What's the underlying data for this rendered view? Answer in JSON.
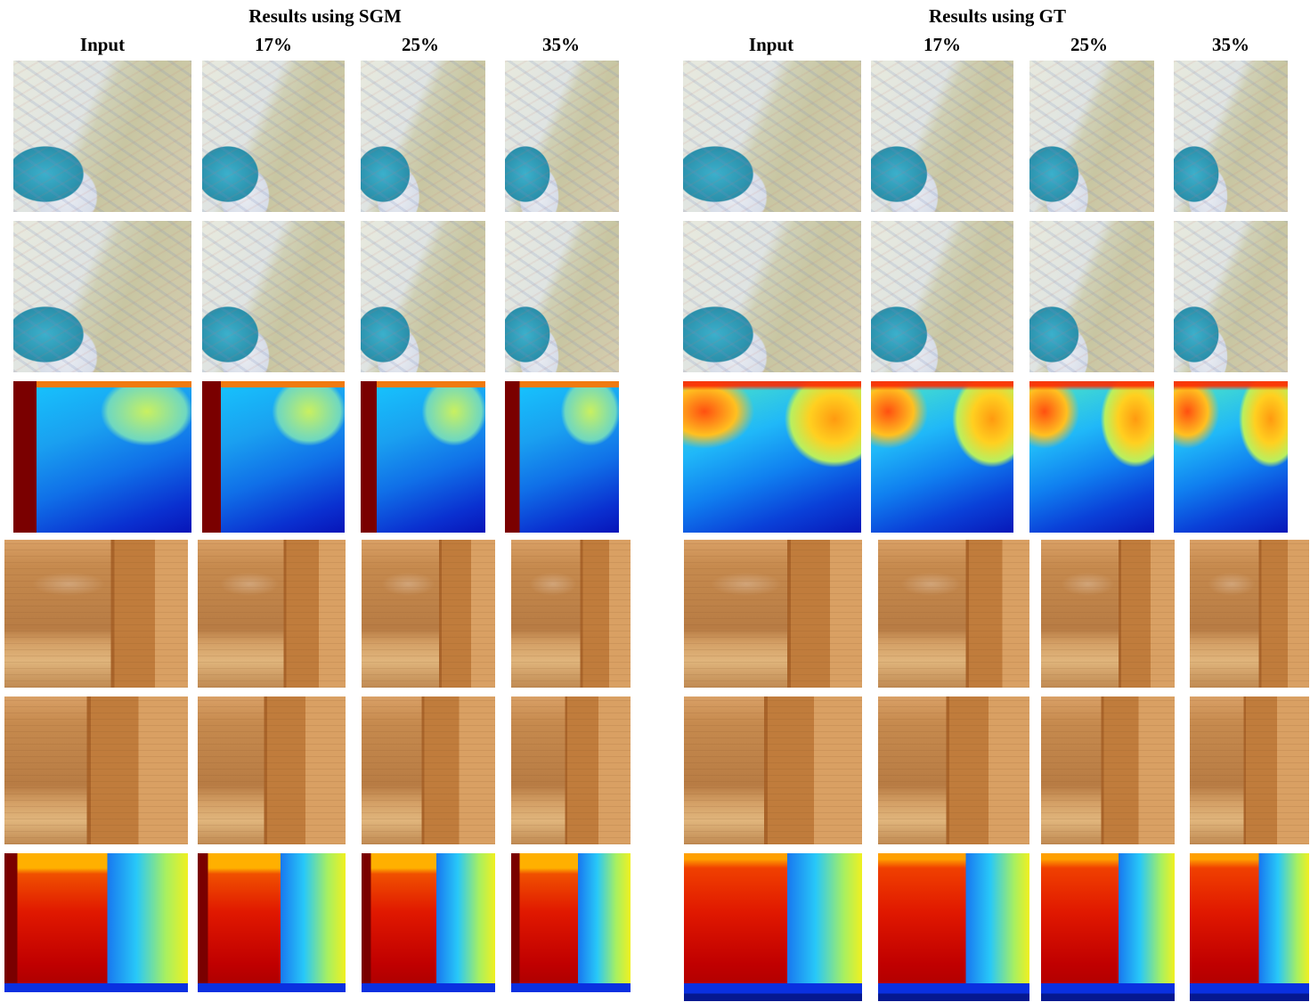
{
  "figure": {
    "groups": [
      {
        "title": "Results using SGM",
        "columns": [
          "Input",
          "17%",
          "25%",
          "35%"
        ]
      },
      {
        "title": "Results using GT",
        "columns": [
          "Input",
          "17%",
          "25%",
          "35%"
        ]
      }
    ],
    "rows": [
      {
        "scene": "bedsheet",
        "kind": "left-view"
      },
      {
        "scene": "bedsheet",
        "kind": "right-view"
      },
      {
        "scene": "bedsheet",
        "kind": "disparity-map"
      },
      {
        "scene": "wooden-shelf",
        "kind": "left-view"
      },
      {
        "scene": "wooden-shelf",
        "kind": "right-view"
      },
      {
        "scene": "wooden-shelf",
        "kind": "disparity-map"
      }
    ],
    "colormap": "jet"
  }
}
